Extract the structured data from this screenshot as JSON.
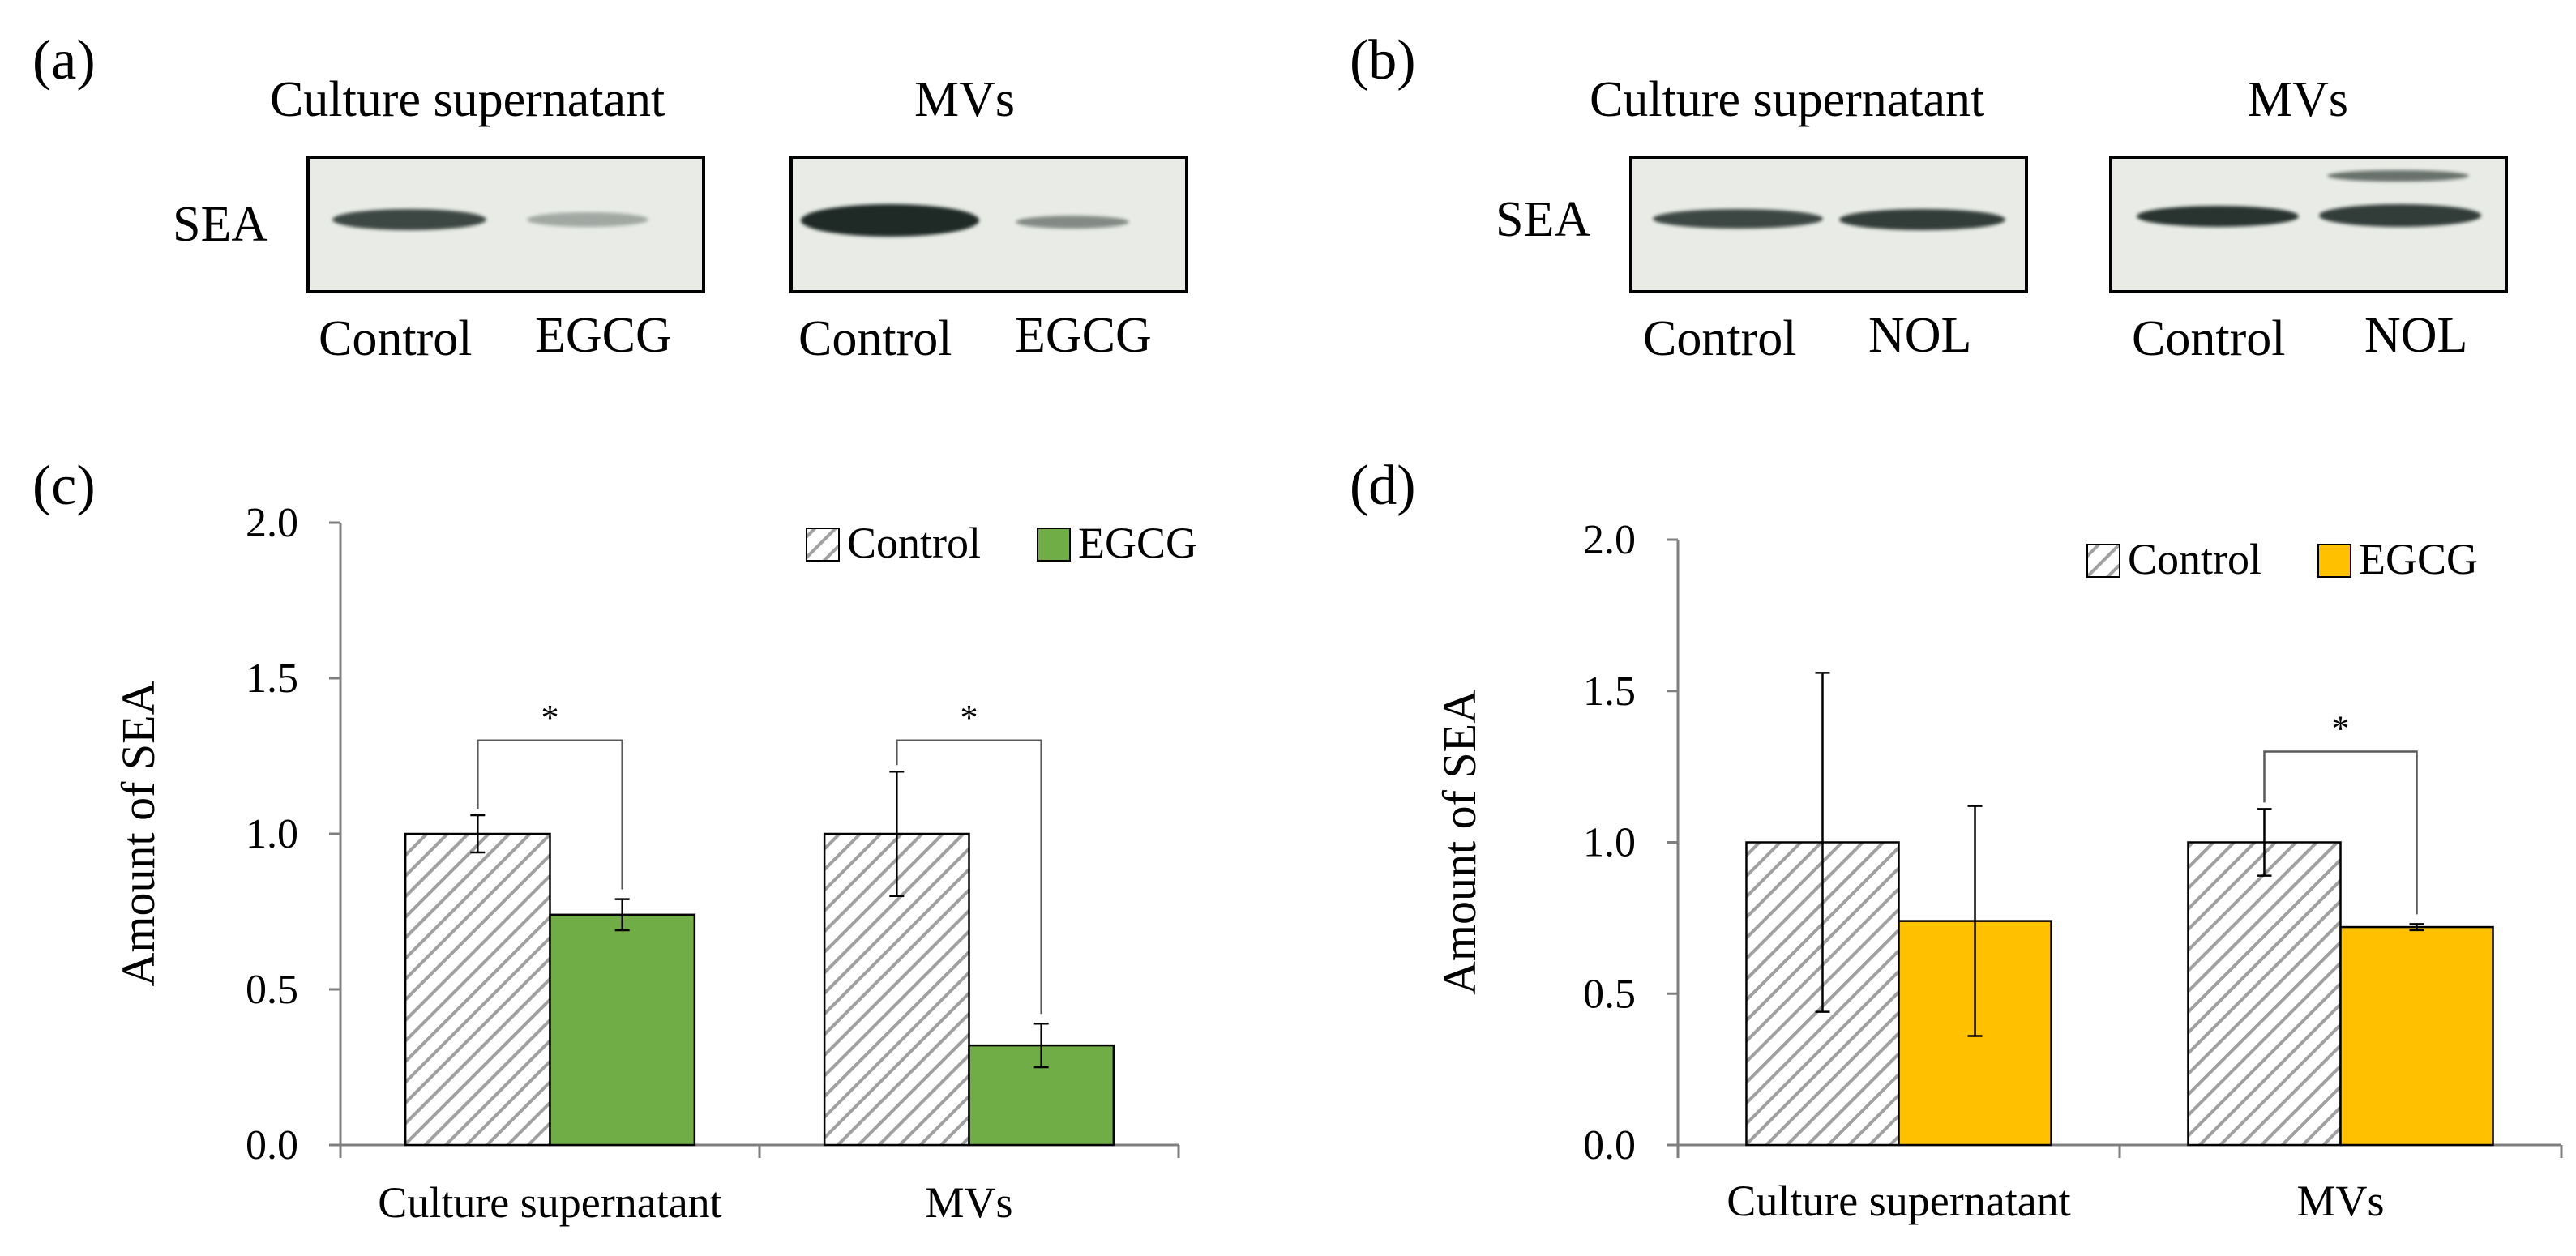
{
  "panels": {
    "a": {
      "label": "(a)",
      "band_label": "SEA",
      "blots": [
        {
          "title": "Culture supernatant",
          "lanes": [
            "Control",
            "EGCG"
          ],
          "intensity": [
            0.85,
            0.35
          ]
        },
        {
          "title": "MVs",
          "lanes": [
            "Control",
            "EGCG"
          ],
          "intensity": [
            1.0,
            0.5
          ]
        }
      ]
    },
    "b": {
      "label": "(b)",
      "band_label": "SEA",
      "blots": [
        {
          "title": "Culture supernatant",
          "lanes": [
            "Control",
            "NOL"
          ],
          "intensity": [
            0.85,
            0.9
          ]
        },
        {
          "title": "MVs",
          "lanes": [
            "Control",
            "NOL"
          ],
          "intensity": [
            0.95,
            0.9
          ]
        }
      ]
    },
    "c": {
      "label": "(c)"
    },
    "d": {
      "label": "(d)"
    }
  },
  "colors": {
    "control_hatch": "#a0a0a0",
    "egcg_green": "#70ad47",
    "egcg_yellow": "#ffc000",
    "axis": "#7f7f7f",
    "blot_bg": "#e9ece6",
    "band": "#1f2a27"
  },
  "chart_data": [
    {
      "type": "bar",
      "panel": "c",
      "categories": [
        "Culture supernatant",
        "MVs"
      ],
      "series": [
        {
          "name": "Control",
          "values": [
            1.0,
            1.0
          ],
          "errors": [
            0.06,
            0.2
          ]
        },
        {
          "name": "EGCG",
          "values": [
            0.74,
            0.32
          ],
          "errors": [
            0.05,
            0.07
          ]
        }
      ],
      "significance": [
        "*",
        "*"
      ],
      "ylabel": "Amount of SEA",
      "ylim": [
        0,
        2.0
      ],
      "yticks": [
        "0.0",
        "0.5",
        "1.0",
        "1.5",
        "2.0"
      ],
      "legend": "top-right"
    },
    {
      "type": "bar",
      "panel": "d",
      "categories": [
        "Culture supernatant",
        "MVs"
      ],
      "series": [
        {
          "name": "Control",
          "values": [
            1.0,
            1.0
          ],
          "errors": [
            0.56,
            0.11
          ]
        },
        {
          "name": "EGCG",
          "values": [
            0.74,
            0.72
          ],
          "errors": [
            0.38,
            0.01
          ]
        }
      ],
      "significance": [
        "",
        "*"
      ],
      "ylabel": "Amount of SEA",
      "ylim": [
        0,
        2.0
      ],
      "yticks": [
        "0.0",
        "0.5",
        "1.0",
        "1.5",
        "2.0"
      ],
      "legend": "top-right"
    }
  ]
}
